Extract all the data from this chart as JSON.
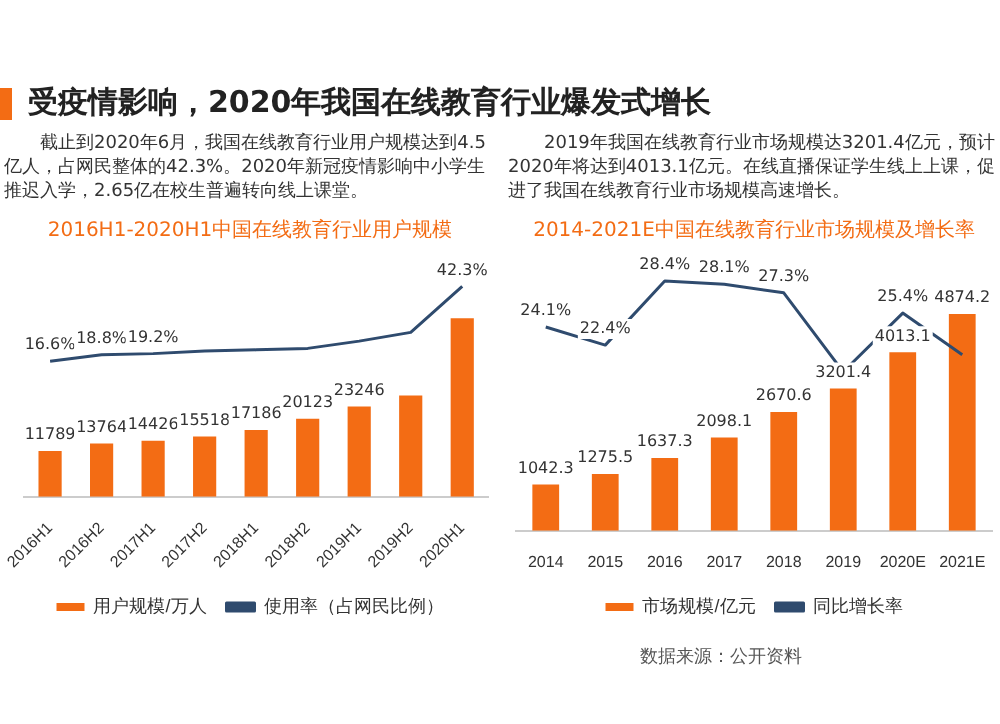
{
  "chart_data": [
    {
      "type": "bar",
      "title": "2016H1-2020H1中国在线教育行业用户规模",
      "subtitle": "截止到2020年6月，我国在线教育行业用户规模达到4.5亿人，占网民整体的42.3%。2020年新冠疫情影响中小学生推迟入学，2.65亿在校生普遍转向线上课堂。",
      "annotations": [
        "受疫情影响，2020年我国在线教育行业爆发式增长"
      ],
      "categories": [
        "2016H1",
        "2016H2",
        "2017H1",
        "2017H2",
        "2018H1",
        "2018H2",
        "2019H1",
        "2019H2",
        "2020H1"
      ],
      "legend": "bottom",
      "marker": "none",
      "series": [
        {
          "name": "用户规模/万人",
          "color": "#f36c14",
          "values": [
            11789,
            13764,
            14426,
            15518,
            17186,
            20123,
            23246,
            26122,
            46000
          ],
          "value_labels": [
            "11789",
            "13764",
            "14426",
            "15518",
            "17186",
            "20123",
            "23246",
            null,
            null
          ]
        },
        {
          "name": "使用率（占网民比例）",
          "type": "line",
          "axis": "y2",
          "color": "#2f4b6e",
          "values": [
            16.6,
            18.8,
            19.2,
            20.1,
            20.5,
            21.0,
            23.5,
            26.5,
            42.3
          ],
          "value_labels": [
            "16.6%",
            "18.8%",
            "19.2%",
            null,
            null,
            null,
            null,
            null,
            "42.3%"
          ]
        }
      ]
    },
    {
      "type": "bar",
      "title": "2014-2021E中国在线教育行业市场规模及增长率",
      "subtitle": "2019年我国在线教育行业市场规模达3201.4亿元，预计2020年将达到4013.1亿元。在线直播保证学生线上上课，促进了我国在线教育行业市场规模高速增长。",
      "annotations": [
        "数据来源：公开资料"
      ],
      "categories": [
        "2014",
        "2015",
        "2016",
        "2017",
        "2018",
        "2019",
        "2020E",
        "2021E"
      ],
      "legend": "bottom",
      "marker": "none",
      "series": [
        {
          "name": "市场规模/亿元",
          "color": "#f36c14",
          "values": [
            1042.3,
            1275.5,
            1637.3,
            2098.1,
            2670.6,
            3201.4,
            4013.1,
            4874.2
          ],
          "value_labels": [
            "1042.3",
            "1275.5",
            "1637.3",
            "2098.1",
            "2670.6",
            "3201.4",
            "4013.1",
            "4874.2"
          ]
        },
        {
          "name": "同比增长率",
          "type": "line",
          "axis": "y2",
          "color": "#2f4b6e",
          "values": [
            24.1,
            22.4,
            28.4,
            28.1,
            27.3,
            19.9,
            25.4,
            21.5
          ],
          "value_labels": [
            "24.1%",
            "22.4%",
            "28.4%",
            "28.1%",
            "27.3%",
            null,
            "25.4%",
            null
          ]
        }
      ]
    }
  ]
}
